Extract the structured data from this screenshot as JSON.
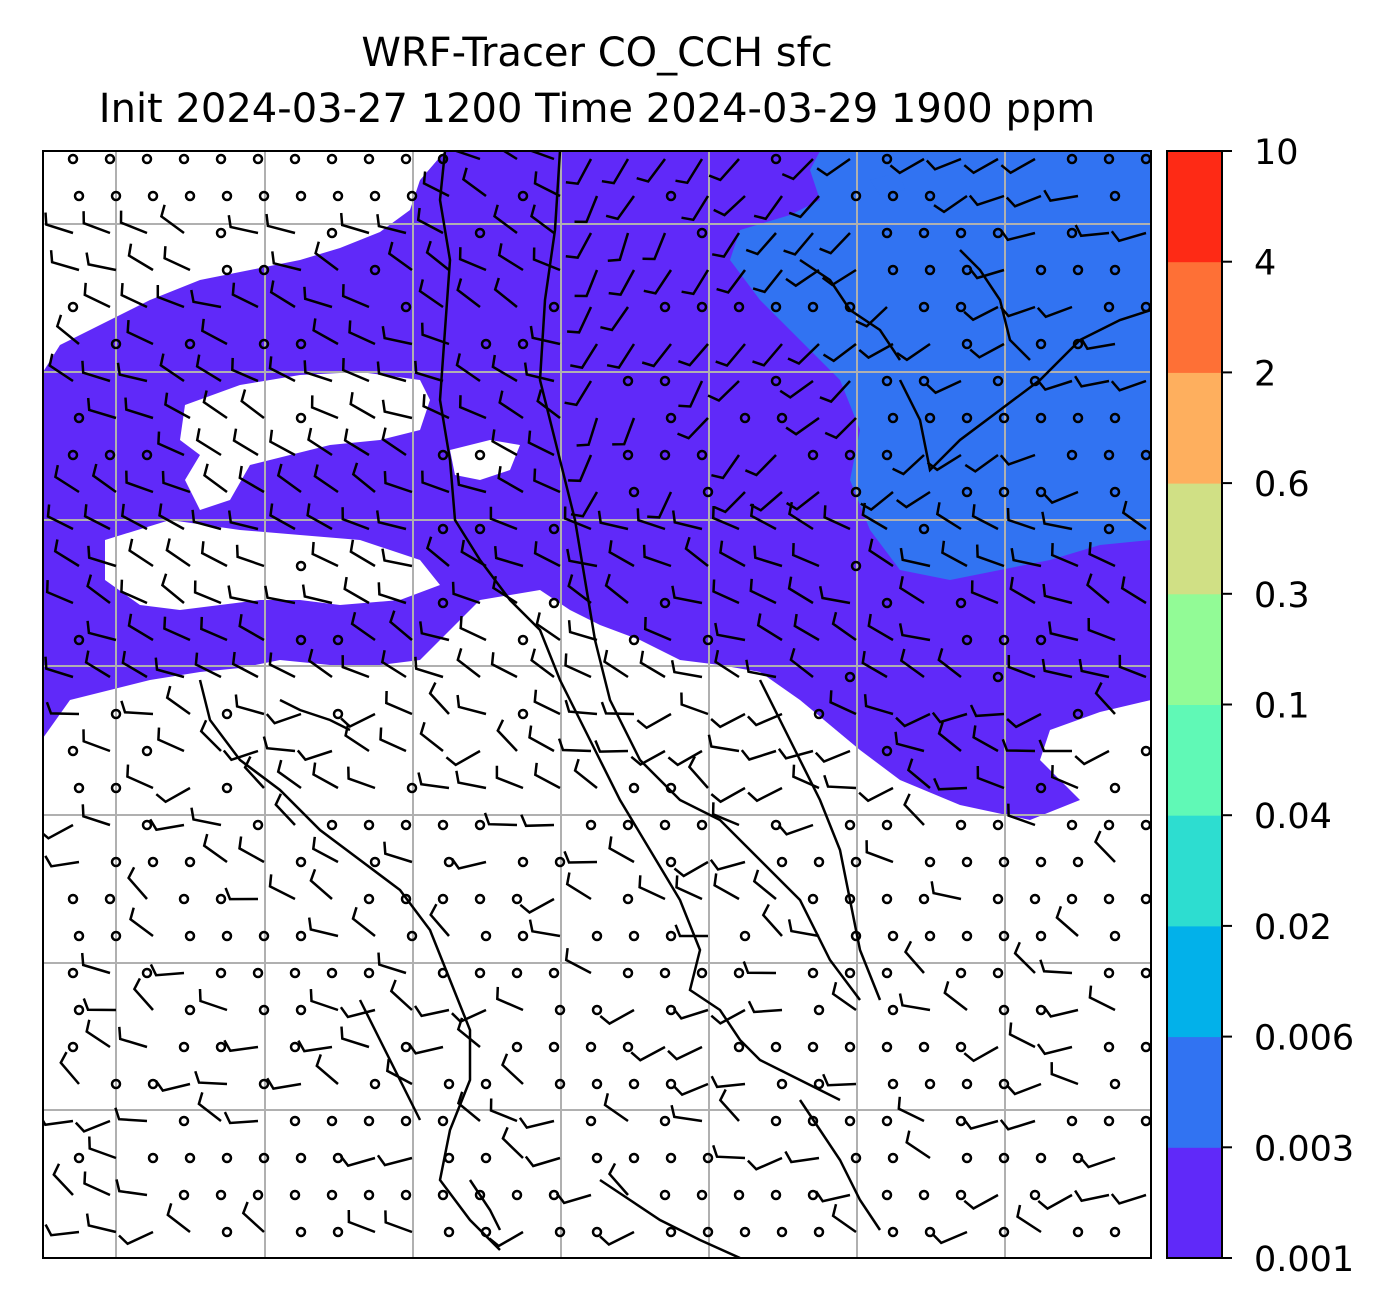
{
  "title": {
    "line1": "WRF-Tracer CO_CCH sfc",
    "line2": "Init 2024-03-27 1200 Time 2024-03-29 1900 ppm"
  },
  "colorbar": {
    "levels": [
      "0.001",
      "0.003",
      "0.006",
      "0.02",
      "0.04",
      "0.1",
      "0.3",
      "0.6",
      "2",
      "4",
      "10"
    ],
    "colors": [
      "#6029f9",
      "#3173f2",
      "#02b1ea",
      "#2dddd0",
      "#60f9b6",
      "#92fb96",
      "#d0e085",
      "#feaf5e",
      "#fe7036",
      "#fe2a15"
    ]
  },
  "legend_items": [
    {
      "label": "WRF-Tracer CO_CCH sfc concentration",
      "color": "#6029f9"
    },
    {
      "label": "wind barbs",
      "color": "#000000"
    },
    {
      "label": "coastlines / borders",
      "color": "#000000"
    },
    {
      "label": "lat/lon grid",
      "color": "#b0b0b0"
    }
  ]
}
